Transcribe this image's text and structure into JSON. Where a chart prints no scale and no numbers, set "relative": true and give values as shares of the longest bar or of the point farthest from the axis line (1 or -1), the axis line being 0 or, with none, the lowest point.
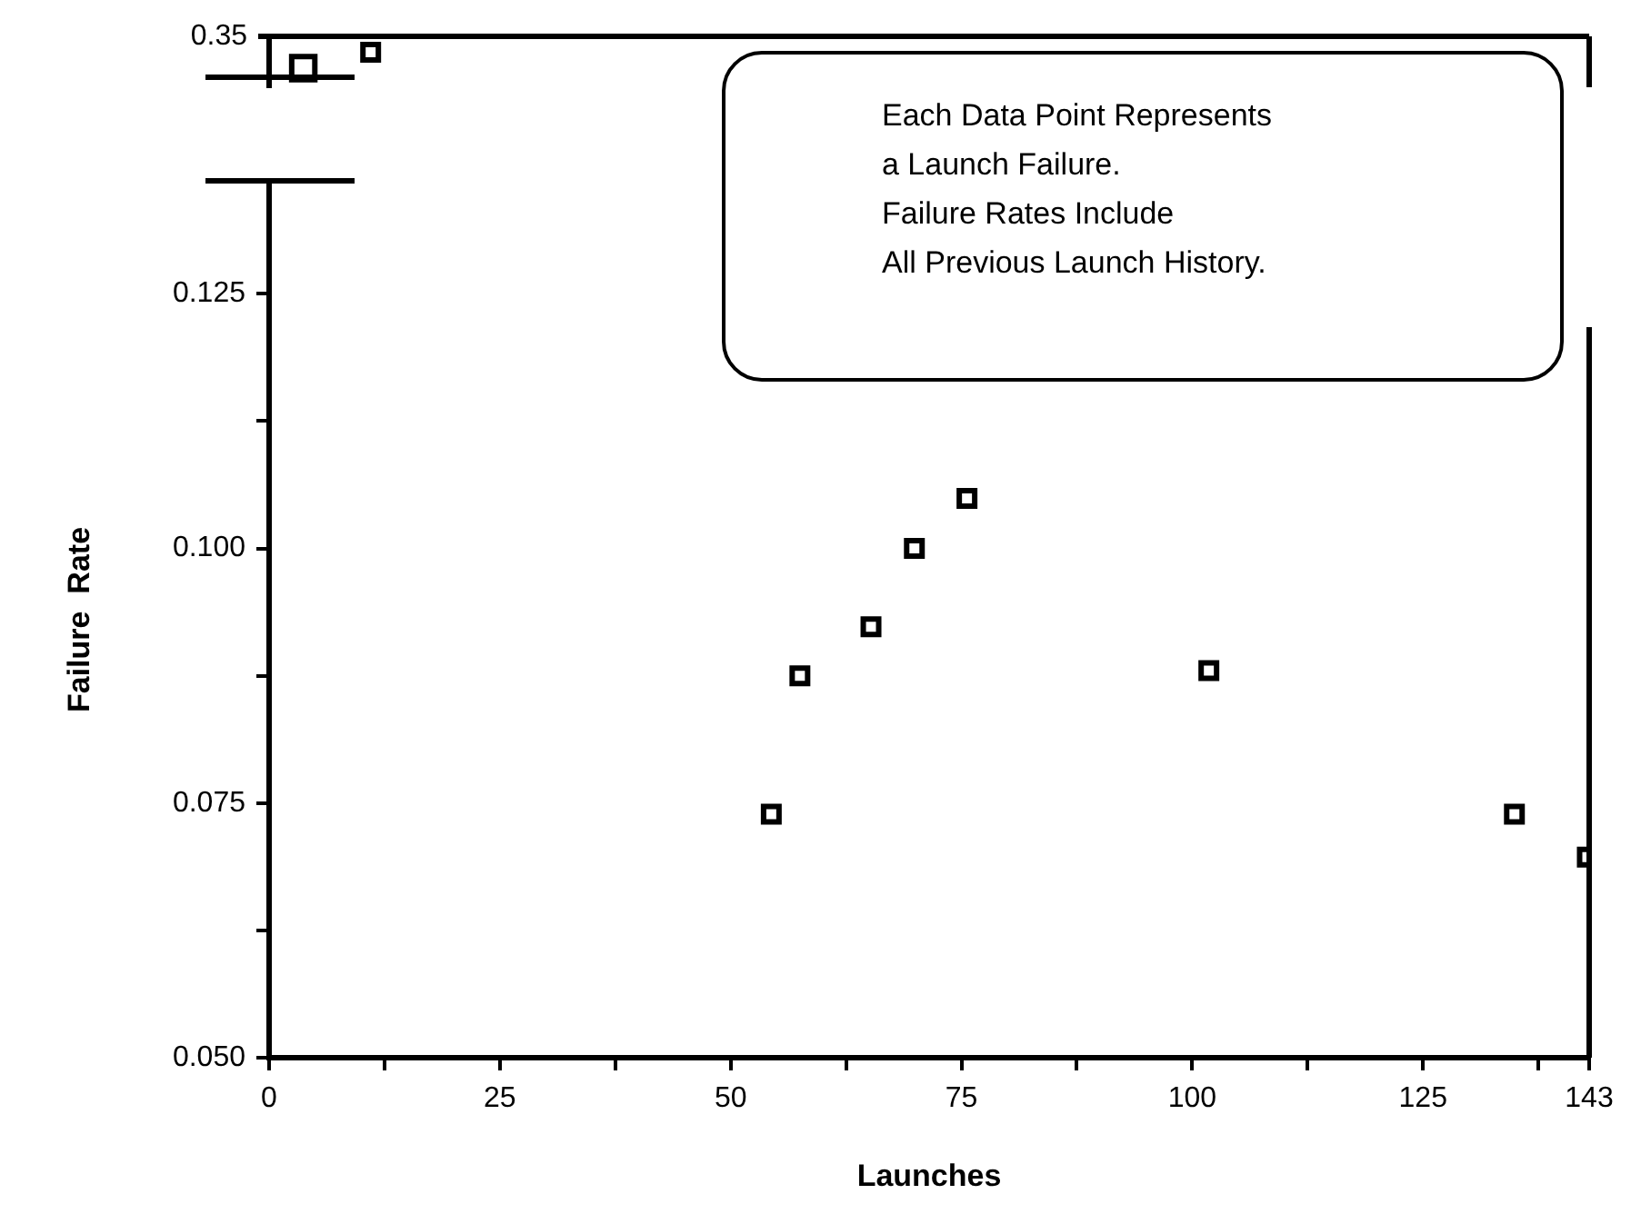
{
  "chart_data": [
    {
      "type": "scatter",
      "marker": "square",
      "legend": false,
      "grid": false,
      "relative": true,
      "tick_labels": false,
      "xlim": [
        0,
        143
      ],
      "annotations": [
        "0.35"
      ],
      "series": [
        {
          "color": "#000000",
          "x": [
            3.7,
            11
          ],
          "values": [
            0,
            1
          ]
        }
      ]
    },
    {
      "type": "scatter",
      "marker": "square",
      "legend": false,
      "grid": false,
      "xlabel": "Launches",
      "ylabel": "Failure  Rate",
      "xlim": [
        0,
        143
      ],
      "ylim": [
        0.05,
        0.136
      ],
      "xticks": [
        0,
        {
          "value": 12.5,
          "label": null
        },
        25,
        {
          "value": 37.5,
          "label": null
        },
        50,
        {
          "value": 62.5,
          "label": null
        },
        75,
        {
          "value": 87.5,
          "label": null
        },
        100,
        {
          "value": 112.5,
          "label": null
        },
        125,
        {
          "value": 137.5,
          "label": null
        },
        143
      ],
      "yticks": [
        {
          "value": 0.05,
          "label": "0.050"
        },
        {
          "value": 0.0625,
          "label": null
        },
        0.075,
        {
          "value": 0.0875,
          "label": null
        },
        {
          "value": 0.1,
          "label": "0.100"
        },
        {
          "value": 0.1125,
          "label": null
        },
        0.125
      ],
      "annotations": [
        "Each Data Point Represents",
        "a Launch Failure.",
        "Failure Rates Include",
        "All Previous Launch History."
      ],
      "series": [
        {
          "color": "#000000",
          "x": [
            54.4,
            57.5,
            65.2,
            69.9,
            75.6,
            101.8,
            134.9,
            142.8
          ],
          "values": [
            0.0739,
            0.0875,
            0.0923,
            0.1,
            0.1049,
            0.088,
            0.0739,
            0.0697
          ]
        }
      ]
    }
  ]
}
